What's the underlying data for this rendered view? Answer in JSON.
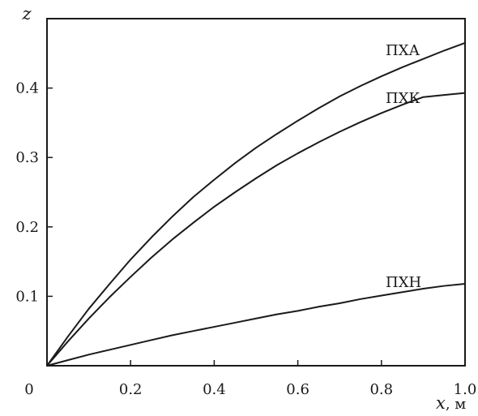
{
  "chart_data": {
    "type": "line",
    "title": "",
    "xlabel": "x",
    "xlabel_unit": ", м",
    "ylabel": "z",
    "xlim": [
      0,
      1.0
    ],
    "ylim": [
      0,
      0.5
    ],
    "x_ticks": [
      0.2,
      0.4,
      0.6,
      0.8,
      1.0
    ],
    "x_tick_labels": [
      "0.2",
      "0.4",
      "0.6",
      "0.8",
      "1.0"
    ],
    "y_ticks": [
      0.1,
      0.2,
      0.3,
      0.4
    ],
    "y_tick_labels": [
      "0.1",
      "0.2",
      "0.3",
      "0.4"
    ],
    "origin_label": "0",
    "grid": false,
    "legend": "none",
    "x": [
      0,
      0.05,
      0.1,
      0.15,
      0.2,
      0.25,
      0.3,
      0.35,
      0.4,
      0.45,
      0.5,
      0.55,
      0.6,
      0.65,
      0.7,
      0.75,
      0.8,
      0.85,
      0.9,
      0.95,
      1.0
    ],
    "series": [
      {
        "name": "ПХА",
        "color": "#1a1a1a",
        "values": [
          0,
          0.042,
          0.082,
          0.118,
          0.153,
          0.185,
          0.215,
          0.243,
          0.268,
          0.292,
          0.314,
          0.334,
          0.353,
          0.371,
          0.388,
          0.403,
          0.417,
          0.43,
          0.442,
          0.454,
          0.465
        ]
      },
      {
        "name": "ПХК",
        "color": "#1a1a1a",
        "values": [
          0,
          0.035,
          0.068,
          0.099,
          0.128,
          0.156,
          0.182,
          0.206,
          0.229,
          0.25,
          0.27,
          0.289,
          0.306,
          0.322,
          0.337,
          0.351,
          0.364,
          0.376,
          0.387,
          0.39,
          0.393
        ]
      },
      {
        "name": "ПХН",
        "color": "#1a1a1a",
        "values": [
          0,
          0.008,
          0.016,
          0.023,
          0.03,
          0.037,
          0.044,
          0.05,
          0.056,
          0.062,
          0.068,
          0.074,
          0.079,
          0.085,
          0.09,
          0.096,
          0.101,
          0.106,
          0.111,
          0.115,
          0.118
        ]
      }
    ]
  }
}
